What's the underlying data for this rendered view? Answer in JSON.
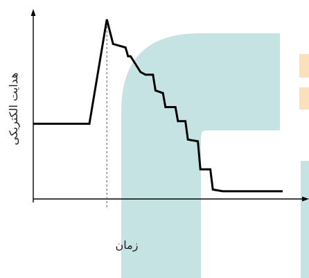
{
  "chart_data": {
    "type": "line",
    "title": "",
    "xlabel": "زمان",
    "ylabel": "هدایت الکتریکی",
    "xlim": [
      0,
      100
    ],
    "ylim": [
      0,
      100
    ],
    "grid": false,
    "legend": "none",
    "x_ticks": [],
    "y_ticks": [],
    "series": [
      {
        "x": [
          0,
          22.5,
          29.5,
          32,
          37,
          38,
          39,
          43,
          45,
          48,
          49,
          52,
          53,
          57,
          58,
          61,
          62,
          66,
          67,
          71,
          72,
          76,
          100
        ],
        "y": [
          40.5,
          40.5,
          100,
          86,
          84,
          79,
          79,
          70,
          68.5,
          68.5,
          59.5,
          58,
          50,
          50,
          42,
          42,
          31.5,
          30.5,
          14.5,
          14.5,
          3,
          2,
          2
        ]
      }
    ],
    "annotations": [
      {
        "type": "vertical-dashed-line",
        "x": 29.5
      }
    ],
    "colors": {
      "line": "#000000",
      "axes": "#000000",
      "guide": "#555555",
      "watermark": "#c6e3e4",
      "watermark_accent": "#fbe1bb"
    }
  }
}
